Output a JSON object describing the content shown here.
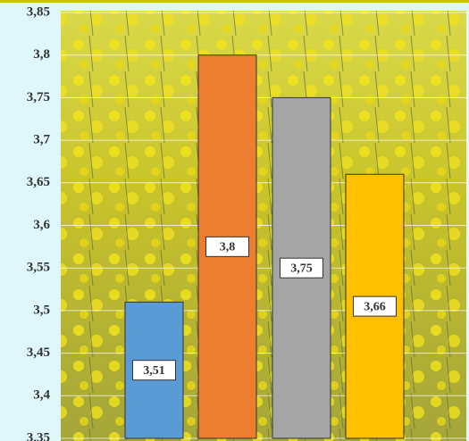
{
  "chart_data": {
    "type": "bar",
    "values": [
      3.51,
      3.8,
      3.75,
      3.66
    ],
    "value_labels": [
      "3,51",
      "3,8",
      "3,75",
      "3,66"
    ],
    "colors": [
      "#5b9bd5",
      "#ed7d31",
      "#a5a5a5",
      "#ffc000"
    ],
    "ylim": [
      3.35,
      3.85
    ],
    "yticks": [
      {
        "value": 3.35,
        "label": "3,35"
      },
      {
        "value": 3.4,
        "label": "3,4"
      },
      {
        "value": 3.45,
        "label": "3,45"
      },
      {
        "value": 3.5,
        "label": "3,5"
      },
      {
        "value": 3.55,
        "label": "3,55"
      },
      {
        "value": 3.6,
        "label": "3,6"
      },
      {
        "value": 3.65,
        "label": "3,65"
      },
      {
        "value": 3.7,
        "label": "3,7"
      },
      {
        "value": 3.75,
        "label": "3,75"
      },
      {
        "value": 3.8,
        "label": "3,8"
      },
      {
        "value": 3.85,
        "label": "3,85"
      }
    ],
    "grid": true
  }
}
